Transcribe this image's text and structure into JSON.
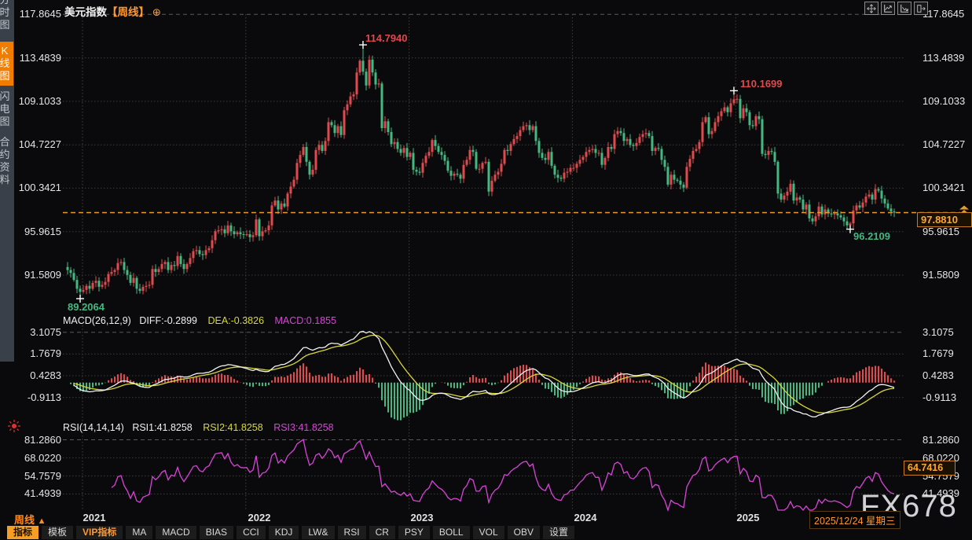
{
  "title": {
    "symbol": "美元指数",
    "period": "【周线】",
    "add_icon": "⊕"
  },
  "window_controls": [
    "pan",
    "scale-x",
    "scale-y",
    "exit"
  ],
  "sidebar": {
    "items": [
      {
        "label": "分时图",
        "name": "intraday-chart",
        "active": false
      },
      {
        "label": "K线图",
        "name": "kline-chart",
        "active": true
      },
      {
        "label": "闪电图",
        "name": "tick-chart",
        "active": false
      },
      {
        "label": "合约资料",
        "name": "contract-info",
        "active": false
      }
    ]
  },
  "price_panel": {
    "y_labels": [
      "117.8645",
      "113.4839",
      "109.1033",
      "104.7227",
      "100.3421",
      "95.9615",
      "91.5809"
    ],
    "current_price_box": "97.8810",
    "annotations": [
      {
        "text": "114.7940",
        "color": "#e0494e"
      },
      {
        "text": "110.1699",
        "color": "#e0494e"
      },
      {
        "text": "89.2064",
        "color": "#44b882"
      },
      {
        "text": "96.2109",
        "color": "#44b882"
      }
    ]
  },
  "macd_panel": {
    "title": "MACD(26,12,9)",
    "diff_label": "DIFF:-0.2899",
    "dea_label": "DEA:-0.3826",
    "macd_label": "MACD:0.1855",
    "y_labels": [
      "3.1075",
      "1.7679",
      "0.4283",
      "-0.9113"
    ]
  },
  "rsi_panel": {
    "title": "RSI(14,14,14)",
    "rsi1_label": "RSI1:41.8258",
    "rsi2_label": "RSI2:41.8258",
    "rsi3_label": "RSI3:41.8258",
    "y_labels": [
      "81.2860",
      "68.0220",
      "54.7579",
      "41.4939"
    ],
    "value_box": "64.7416"
  },
  "x_axis": {
    "years": [
      "2021",
      "2022",
      "2023",
      "2024",
      "2025"
    ],
    "period_label": "周线",
    "period_arrow": "▲",
    "date_box": "2025/12/24 星期三"
  },
  "bottom_toolbar": {
    "buttons": [
      {
        "label": "指标",
        "name": "indicator",
        "style": "active"
      },
      {
        "label": "模板",
        "name": "template",
        "style": "normal"
      },
      {
        "label": "VIP指标",
        "name": "vip-indicator",
        "style": "vip"
      },
      {
        "label": "MA",
        "name": "ma",
        "style": "normal"
      },
      {
        "label": "MACD",
        "name": "macd",
        "style": "normal"
      },
      {
        "label": "BIAS",
        "name": "bias",
        "style": "normal"
      },
      {
        "label": "CCI",
        "name": "cci",
        "style": "normal"
      },
      {
        "label": "KDJ",
        "name": "kdj",
        "style": "normal"
      },
      {
        "label": "LW&",
        "name": "lwr",
        "style": "normal"
      },
      {
        "label": "RSI",
        "name": "rsi",
        "style": "normal"
      },
      {
        "label": "CR",
        "name": "cr",
        "style": "normal"
      },
      {
        "label": "PSY",
        "name": "psy",
        "style": "normal"
      },
      {
        "label": "BOLL",
        "name": "boll",
        "style": "normal"
      },
      {
        "label": "VOL",
        "name": "vol",
        "style": "normal"
      },
      {
        "label": "OBV",
        "name": "obv",
        "style": "normal"
      },
      {
        "label": "设置",
        "name": "settings",
        "style": "normal"
      }
    ]
  },
  "watermark": "FX678",
  "colors": {
    "up_candle": "#e0494e",
    "down_candle": "#44b882",
    "accent_orange": "#ff9832",
    "price_line": "#e89a2e",
    "diff_line": "#f2f2f2",
    "dea_line": "#d8d83a",
    "rsi_line": "#d944d9",
    "grid": "#3a3a3a",
    "axis_text": "#e6e6e6"
  },
  "chart_data": {
    "type": "candlestick",
    "title": "美元指数 周线 (US Dollar Index weekly)",
    "x_axis_years": [
      2021,
      2022,
      2023,
      2024,
      2025
    ],
    "y_axis_values": [
      117.8645,
      113.4839,
      109.1033,
      104.7227,
      100.3421,
      95.9615,
      91.5809
    ],
    "current_price": 97.881,
    "current_date": "2025/12/24 星期三",
    "key_points": [
      {
        "value": 114.794,
        "week_index": 95,
        "kind": "high"
      },
      {
        "value": 110.1699,
        "week_index": 213,
        "kind": "high"
      },
      {
        "value": 89.2064,
        "week_index": 5,
        "kind": "low"
      },
      {
        "value": 96.2109,
        "week_index": 250,
        "kind": "low"
      }
    ],
    "weekly_closes": [
      92.4,
      92.1,
      91.8,
      91.1,
      90.2,
      89.9,
      90.1,
      90.5,
      90.2,
      90.8,
      91.0,
      90.4,
      90.6,
      90.9,
      91.7,
      91.9,
      92.1,
      92.8,
      92.9,
      92.1,
      91.6,
      90.8,
      91.3,
      90.2,
      90.0,
      90.4,
      90.5,
      90.6,
      92.2,
      91.9,
      92.2,
      92.7,
      92.9,
      92.1,
      92.6,
      92.5,
      93.5,
      92.7,
      92.2,
      92.7,
      93.3,
      94.0,
      94.1,
      93.7,
      93.6,
      94.1,
      94.3,
      95.1,
      96.0,
      96.1,
      96.2,
      95.8,
      96.6,
      96.0,
      95.7,
      95.9,
      95.7,
      95.67,
      95.7,
      95.4,
      95.6,
      97.2,
      95.5,
      96.0,
      96.1,
      96.6,
      98.6,
      99.1,
      98.2,
      98.8,
      98.5,
      99.8,
      100.5,
      101.2,
      102.9,
      103.7,
      104.5,
      103.0,
      101.7,
      102.2,
      104.2,
      104.7,
      104.1,
      105.1,
      107.0,
      106.7,
      105.9,
      106.6,
      105.7,
      108.2,
      108.8,
      109.6,
      109.8,
      112.0,
      113.2,
      112.1,
      110.7,
      113.3,
      112.0,
      110.8,
      110.9,
      106.4,
      107.1,
      106.0,
      104.8,
      105.0,
      104.3,
      103.9,
      104.4,
      103.5,
      103.9,
      102.2,
      102.0,
      101.9,
      102.9,
      103.6,
      104.0,
      105.2,
      104.6,
      104.0,
      103.7,
      103.1,
      102.1,
      101.6,
      101.8,
      101.7,
      101.3,
      102.7,
      103.2,
      104.2,
      104.0,
      102.3,
      102.3,
      102.9,
      103.0,
      100.0,
      101.1,
      101.7,
      102.0,
      102.8,
      104.2,
      104.1,
      104.8,
      105.3,
      105.6,
      106.2,
      106.6,
      106.7,
      106.2,
      106.6,
      105.1,
      103.9,
      103.4,
      103.2,
      104.0,
      102.6,
      101.7,
      101.4,
      101.3,
      101.9,
      102.0,
      102.4,
      102.4,
      102.8,
      103.2,
      103.5,
      104.0,
      104.2,
      104.3,
      103.9,
      103.9,
      102.7,
      103.4,
      104.5,
      104.3,
      105.8,
      106.1,
      105.9,
      105.1,
      105.3,
      104.7,
      104.6,
      104.9,
      105.5,
      105.8,
      105.9,
      105.6,
      104.1,
      104.4,
      104.3,
      103.2,
      102.5,
      100.7,
      101.7,
      101.2,
      101.1,
      100.7,
      100.4,
      102.5,
      103.3,
      104.1,
      104.3,
      105.0,
      107.0,
      107.5,
      105.8,
      106.1,
      107.0,
      107.6,
      108.1,
      108.5,
      108.0,
      108.9,
      109.3,
      109.35,
      107.4,
      108.4,
      108.0,
      106.7,
      106.6,
      107.6,
      107.3,
      103.8,
      103.7,
      104.1,
      104.0,
      103.0,
      99.8,
      99.2,
      99.6,
      100.0,
      100.8,
      99.1,
      99.4,
      99.2,
      98.2,
      98.7,
      97.3,
      97.0,
      97.5,
      98.5,
      97.7,
      98.2,
      97.8,
      97.7,
      97.8,
      97.6,
      97.4,
      97.0,
      96.6,
      96.8,
      98.1,
      98.6,
      98.4,
      98.9,
      99.5,
      99.7,
      99.2,
      100.25,
      100.1,
      99.3,
      98.8,
      98.3,
      98.0,
      97.881
    ],
    "indicators": {
      "macd": {
        "params": [
          26,
          12,
          9
        ],
        "diff": -0.2899,
        "dea": -0.3826,
        "macd": 0.1855,
        "y_gridlines": [
          3.1075,
          1.7679,
          0.4283,
          -0.9113
        ]
      },
      "rsi": {
        "params": [
          14,
          14,
          14
        ],
        "rsi1": 41.8258,
        "rsi2": 41.8258,
        "rsi3": 41.8258,
        "y_gridlines": [
          81.286,
          68.022,
          54.7579,
          41.4939
        ],
        "right_box_value": 64.7416
      }
    }
  }
}
